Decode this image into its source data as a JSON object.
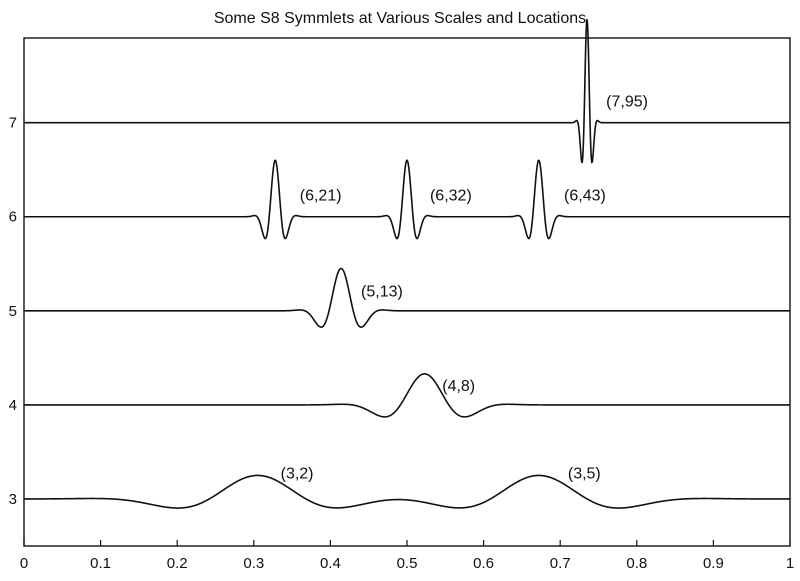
{
  "chart_data": {
    "type": "line",
    "title": "Some S8 Symmlets at Various Scales and Locations",
    "xlim": [
      0,
      1
    ],
    "ylim": [
      2.5,
      7.9
    ],
    "grid": false,
    "x_ticks": [
      0,
      0.1,
      0.2,
      0.3,
      0.4,
      0.5,
      0.6,
      0.7,
      0.8,
      0.9,
      1
    ],
    "x_tick_labels": [
      "0",
      "0.1",
      "0.2",
      "0.3",
      "0.4",
      "0.5",
      "0.6",
      "0.7",
      "0.8",
      "0.9",
      "1"
    ],
    "y_ticks": [
      3,
      4,
      5,
      6,
      7
    ],
    "y_tick_labels": [
      "3",
      "4",
      "5",
      "6",
      "7"
    ],
    "series": [
      {
        "level": 7,
        "center": 0.735,
        "width": 0.015,
        "amplitude": 1.1
      },
      {
        "level": 6,
        "center": 0.328,
        "width": 0.03,
        "amplitude": 0.6
      },
      {
        "level": 6,
        "center": 0.5,
        "width": 0.03,
        "amplitude": 0.6
      },
      {
        "level": 6,
        "center": 0.672,
        "width": 0.03,
        "amplitude": 0.6
      },
      {
        "level": 5,
        "center": 0.414,
        "width": 0.06,
        "amplitude": 0.45
      },
      {
        "level": 4,
        "center": 0.523,
        "width": 0.12,
        "amplitude": 0.33
      },
      {
        "level": 3,
        "center": 0.305,
        "width": 0.24,
        "amplitude": 0.25
      },
      {
        "level": 3,
        "center": 0.672,
        "width": 0.24,
        "amplitude": 0.25
      }
    ],
    "annotations": [
      {
        "text": "(7,95)",
        "x": 0.76,
        "y": 7.17
      },
      {
        "text": "(6,21)",
        "x": 0.36,
        "y": 6.17
      },
      {
        "text": "(6,32)",
        "x": 0.53,
        "y": 6.17
      },
      {
        "text": "(6,43)",
        "x": 0.705,
        "y": 6.17
      },
      {
        "text": "(5,13)",
        "x": 0.44,
        "y": 5.15
      },
      {
        "text": "(4,8)",
        "x": 0.546,
        "y": 4.15
      },
      {
        "text": "(3,2)",
        "x": 0.335,
        "y": 3.22
      },
      {
        "text": "(3,5)",
        "x": 0.71,
        "y": 3.22
      }
    ]
  }
}
